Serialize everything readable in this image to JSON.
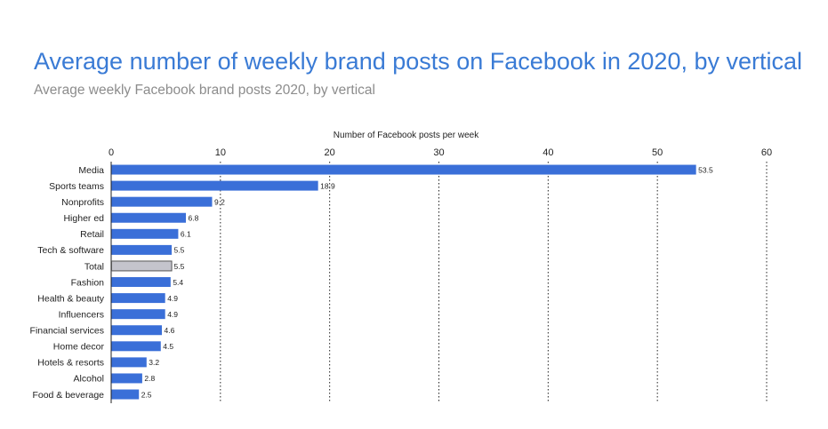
{
  "header": {
    "title": "Average number of weekly brand posts on Facebook in 2020, by vertical",
    "subtitle": "Average weekly Facebook brand posts 2020, by vertical"
  },
  "chart_data": {
    "type": "bar",
    "orientation": "horizontal",
    "title": "Average number of weekly brand posts on Facebook in 2020, by vertical",
    "subtitle": "Average weekly Facebook brand posts 2020, by vertical",
    "xlabel": "Number of Facebook posts per week",
    "ylabel": "",
    "xlim": [
      0,
      60
    ],
    "ticks": [
      0,
      10,
      20,
      30,
      40,
      50,
      60
    ],
    "categories": [
      "Media",
      "Sports teams",
      "Nonprofits",
      "Higher ed",
      "Retail",
      "Tech & software",
      "Total",
      "Fashion",
      "Health & beauty",
      "Influencers",
      "Financial services",
      "Home decor",
      "Hotels & resorts",
      "Alcohol",
      "Food & beverage"
    ],
    "values": [
      53.5,
      18.9,
      9.2,
      6.8,
      6.1,
      5.5,
      5.5,
      5.4,
      4.9,
      4.9,
      4.6,
      4.5,
      3.2,
      2.8,
      2.5
    ],
    "value_labels": [
      "53.5",
      "18.9",
      "9.2",
      "6.8",
      "6.1",
      "5.5",
      "5.5",
      "5.4",
      "4.9",
      "4.9",
      "4.6",
      "4.5",
      "3.2",
      "2.8",
      "2.5"
    ],
    "highlight_category": "Total",
    "grid": "vertical dotted",
    "axis_position": "top",
    "colors": {
      "bar": "#3a6fd8",
      "highlight": "#c4c4cc",
      "highlight_border": "#555555",
      "title": "#3a7bd5"
    }
  }
}
